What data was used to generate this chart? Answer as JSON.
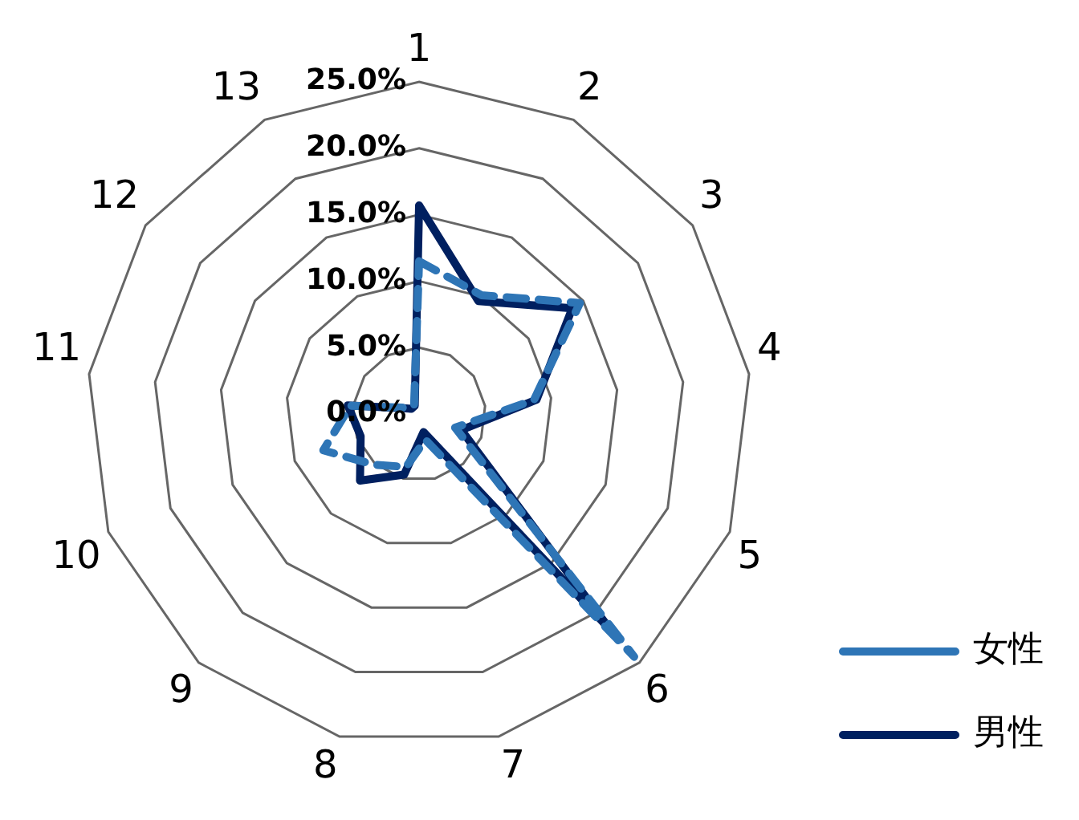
{
  "chart_data": {
    "type": "radar",
    "categories": [
      "1",
      "2",
      "3",
      "4",
      "5",
      "6",
      "7",
      "8",
      "9",
      "10",
      "11",
      "12",
      "13"
    ],
    "series": [
      {
        "name": "女性",
        "color": "#2e75b6",
        "line_style": "dashed",
        "values": [
          11.5,
          10.1,
          14.7,
          8.7,
          2.9,
          24.4,
          2.0,
          4.1,
          5.1,
          7.7,
          5.2,
          0.8,
          0.8
        ]
      },
      {
        "name": "男性",
        "color": "#002060",
        "line_style": "solid",
        "values": [
          15.7,
          9.6,
          14.0,
          8.9,
          3.4,
          21.7,
          1.4,
          4.7,
          6.7,
          4.7,
          5.4,
          0.7,
          0.7
        ]
      }
    ],
    "ylim": [
      0,
      25
    ],
    "yticks": [
      {
        "value": 0,
        "label": "0.0%"
      },
      {
        "value": 5,
        "label": "5.0%"
      },
      {
        "value": 10,
        "label": "10.0%"
      },
      {
        "value": 15,
        "label": "15.0%"
      },
      {
        "value": 20,
        "label": "20.0%"
      },
      {
        "value": 25,
        "label": "25.0%"
      }
    ],
    "grid": true,
    "legend": "right",
    "marker": "none"
  }
}
